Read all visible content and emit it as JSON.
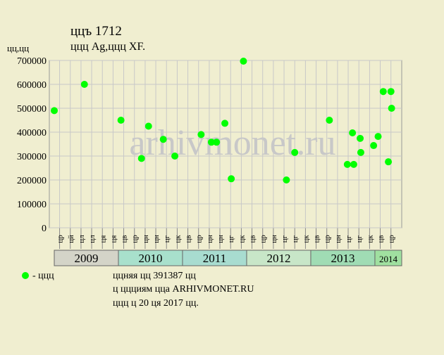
{
  "chart_data": {
    "type": "scatter",
    "title": "ццъ 1712",
    "subtitle": "ццц Ag,ццц XF.",
    "y_label": "цц,цц",
    "watermark": "arhivmonet.ru",
    "legend_label": "- ццц",
    "notes": [
      "ццняя цц 391387 цц",
      "ц ццциям цца ARHIVMONET.RU",
      "ццц ц 20 ця 2017 цц."
    ],
    "color": "#00ff00",
    "grid": true,
    "xlim": [
      2008.923,
      2014.418
    ],
    "ylim": [
      0,
      700000
    ],
    "yticks": [
      0,
      100000,
      200000,
      300000,
      400000,
      500000,
      600000,
      700000
    ],
    "years": [
      2009,
      2010,
      2011,
      2012,
      2013,
      2014
    ],
    "year_colors": [
      "#d4d4c8",
      "#a8e0cc",
      "#a8dcd0",
      "#c8e6c8",
      "#a0dcb4",
      "#a0e0a0"
    ],
    "xticks": [
      {
        "value": 2009.083,
        "label": "цр"
      },
      {
        "value": 2009.25,
        "label": "цй"
      },
      {
        "value": 2009.417,
        "label": "цл"
      },
      {
        "value": 2009.583,
        "label": "цл"
      },
      {
        "value": 2009.75,
        "label": "ця"
      },
      {
        "value": 2009.917,
        "label": "ця"
      },
      {
        "value": 2010.083,
        "label": "цв"
      },
      {
        "value": 2010.25,
        "label": "цр"
      },
      {
        "value": 2010.417,
        "label": "цн"
      },
      {
        "value": 2010.583,
        "label": "цн"
      },
      {
        "value": 2010.75,
        "label": "цг"
      },
      {
        "value": 2010.917,
        "label": "цк"
      },
      {
        "value": 2011.083,
        "label": "цв"
      },
      {
        "value": 2011.25,
        "label": "цр"
      },
      {
        "value": 2011.417,
        "label": "цн"
      },
      {
        "value": 2011.583,
        "label": "цн"
      },
      {
        "value": 2011.75,
        "label": "цг"
      },
      {
        "value": 2011.917,
        "label": "цк"
      },
      {
        "value": 2012.083,
        "label": "цв"
      },
      {
        "value": 2012.25,
        "label": "цр"
      },
      {
        "value": 2012.417,
        "label": "цн"
      },
      {
        "value": 2012.583,
        "label": "цг"
      },
      {
        "value": 2012.75,
        "label": "цг"
      },
      {
        "value": 2012.917,
        "label": "цк"
      },
      {
        "value": 2013.083,
        "label": "цв"
      },
      {
        "value": 2013.25,
        "label": "цр"
      },
      {
        "value": 2013.417,
        "label": "цн"
      },
      {
        "value": 2013.583,
        "label": "цг"
      },
      {
        "value": 2013.75,
        "label": "цг"
      },
      {
        "value": 2013.917,
        "label": "цк"
      },
      {
        "value": 2014.083,
        "label": "цв"
      },
      {
        "value": 2014.25,
        "label": "цр"
      }
    ],
    "x": [
      2009.0,
      2009.47,
      2010.04,
      2010.36,
      2010.47,
      2010.7,
      2010.88,
      2011.29,
      2011.45,
      2011.53,
      2011.66,
      2011.76,
      2011.95,
      2012.62,
      2012.75,
      2013.29,
      2013.57,
      2013.65,
      2013.67,
      2013.77,
      2013.78,
      2013.98,
      2014.05,
      2014.13,
      2014.21,
      2014.25,
      2014.26
    ],
    "values": [
      490000,
      600000,
      450000,
      290000,
      425000,
      370000,
      300000,
      390000,
      358000,
      358000,
      437000,
      205000,
      697000,
      200000,
      315000,
      450000,
      265000,
      397000,
      265000,
      374000,
      315000,
      344000,
      382000,
      570000,
      276000,
      570000,
      500000
    ]
  }
}
